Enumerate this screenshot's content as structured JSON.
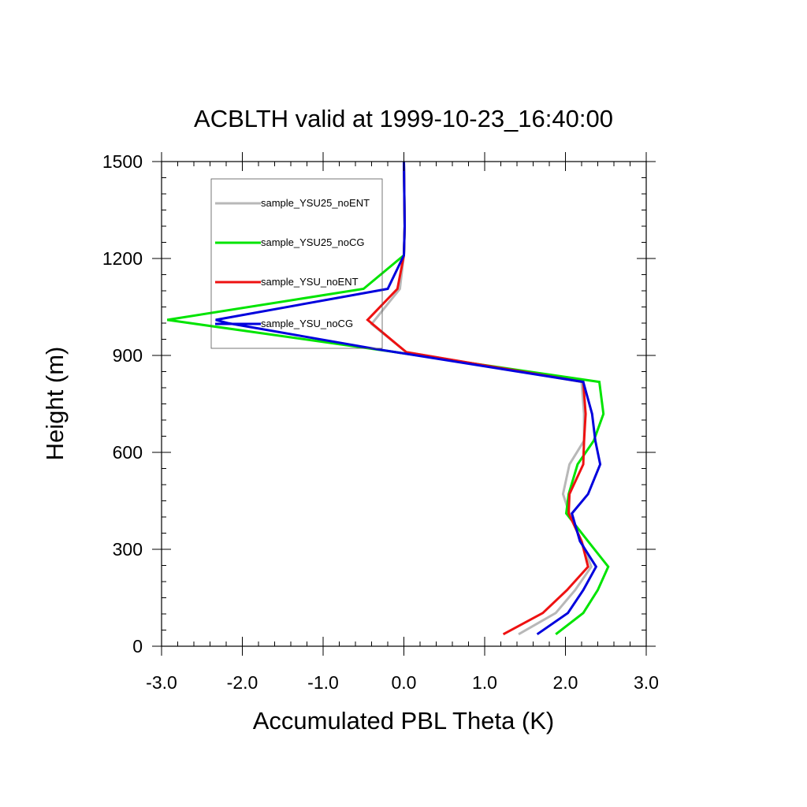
{
  "chart_data": {
    "type": "line",
    "title": "ACBLTH valid at 1999-10-23_16:40:00",
    "xlabel": "Accumulated PBL Theta (K)",
    "ylabel": "Height (m)",
    "xlim": [
      -3.0,
      3.0
    ],
    "ylim": [
      0,
      1500
    ],
    "x_ticks": [
      -3.0,
      -2.0,
      -1.0,
      0.0,
      1.0,
      2.0,
      3.0
    ],
    "x_tick_labels": [
      "-3.0",
      "-2.0",
      "-1.0",
      "0.0",
      "1.0",
      "2.0",
      "3.0"
    ],
    "y_ticks": [
      0,
      300,
      600,
      900,
      1200,
      1500
    ],
    "y_tick_labels": [
      "0",
      "300",
      "600",
      "900",
      "1200",
      "1500"
    ],
    "grid": false,
    "legend_position": "top-left",
    "series": [
      {
        "name": "sample_YSU25_noENT",
        "color": "#b8b8b8",
        "points": [
          [
            1.42,
            37
          ],
          [
            1.88,
            103
          ],
          [
            2.12,
            174
          ],
          [
            2.32,
            246
          ],
          [
            2.2,
            325
          ],
          [
            2.05,
            411
          ],
          [
            1.97,
            471
          ],
          [
            2.05,
            563
          ],
          [
            2.23,
            636
          ],
          [
            2.23,
            719
          ],
          [
            2.2,
            818
          ],
          [
            0.03,
            910
          ],
          [
            -0.4,
            997
          ],
          [
            -0.05,
            1106
          ],
          [
            0.0,
            1210
          ],
          [
            0.01,
            1300
          ],
          [
            0.0,
            1500
          ]
        ]
      },
      {
        "name": "sample_YSU25_noCG",
        "color": "#00e400",
        "points": [
          [
            1.88,
            37
          ],
          [
            2.22,
            103
          ],
          [
            2.4,
            174
          ],
          [
            2.53,
            246
          ],
          [
            2.28,
            325
          ],
          [
            2.01,
            411
          ],
          [
            2.04,
            471
          ],
          [
            2.15,
            563
          ],
          [
            2.35,
            636
          ],
          [
            2.47,
            719
          ],
          [
            2.42,
            818
          ],
          [
            -0.1,
            910
          ],
          [
            -2.93,
            1010
          ],
          [
            -0.5,
            1106
          ],
          [
            0.0,
            1210
          ],
          [
            0.01,
            1300
          ],
          [
            0.0,
            1500
          ]
        ]
      },
      {
        "name": "sample_YSU_noENT",
        "color": "#ee1111",
        "points": [
          [
            1.23,
            37
          ],
          [
            1.72,
            103
          ],
          [
            2.02,
            174
          ],
          [
            2.28,
            246
          ],
          [
            2.2,
            325
          ],
          [
            2.04,
            411
          ],
          [
            2.05,
            471
          ],
          [
            2.22,
            563
          ],
          [
            2.23,
            636
          ],
          [
            2.25,
            719
          ],
          [
            2.22,
            818
          ],
          [
            0.03,
            910
          ],
          [
            -0.45,
            1010
          ],
          [
            -0.08,
            1106
          ],
          [
            0.0,
            1210
          ],
          [
            0.01,
            1300
          ],
          [
            0.0,
            1500
          ]
        ]
      },
      {
        "name": "sample_YSU_noCG",
        "color": "#0000dd",
        "points": [
          [
            1.65,
            37
          ],
          [
            2.03,
            103
          ],
          [
            2.22,
            174
          ],
          [
            2.38,
            246
          ],
          [
            2.18,
            325
          ],
          [
            2.08,
            411
          ],
          [
            2.28,
            471
          ],
          [
            2.43,
            563
          ],
          [
            2.37,
            636
          ],
          [
            2.33,
            719
          ],
          [
            2.22,
            818
          ],
          [
            -0.35,
            920
          ],
          [
            -2.18,
            1000
          ],
          [
            -2.33,
            1010
          ],
          [
            -0.2,
            1106
          ],
          [
            0.0,
            1210
          ],
          [
            0.01,
            1300
          ],
          [
            0.0,
            1500
          ]
        ]
      }
    ]
  }
}
